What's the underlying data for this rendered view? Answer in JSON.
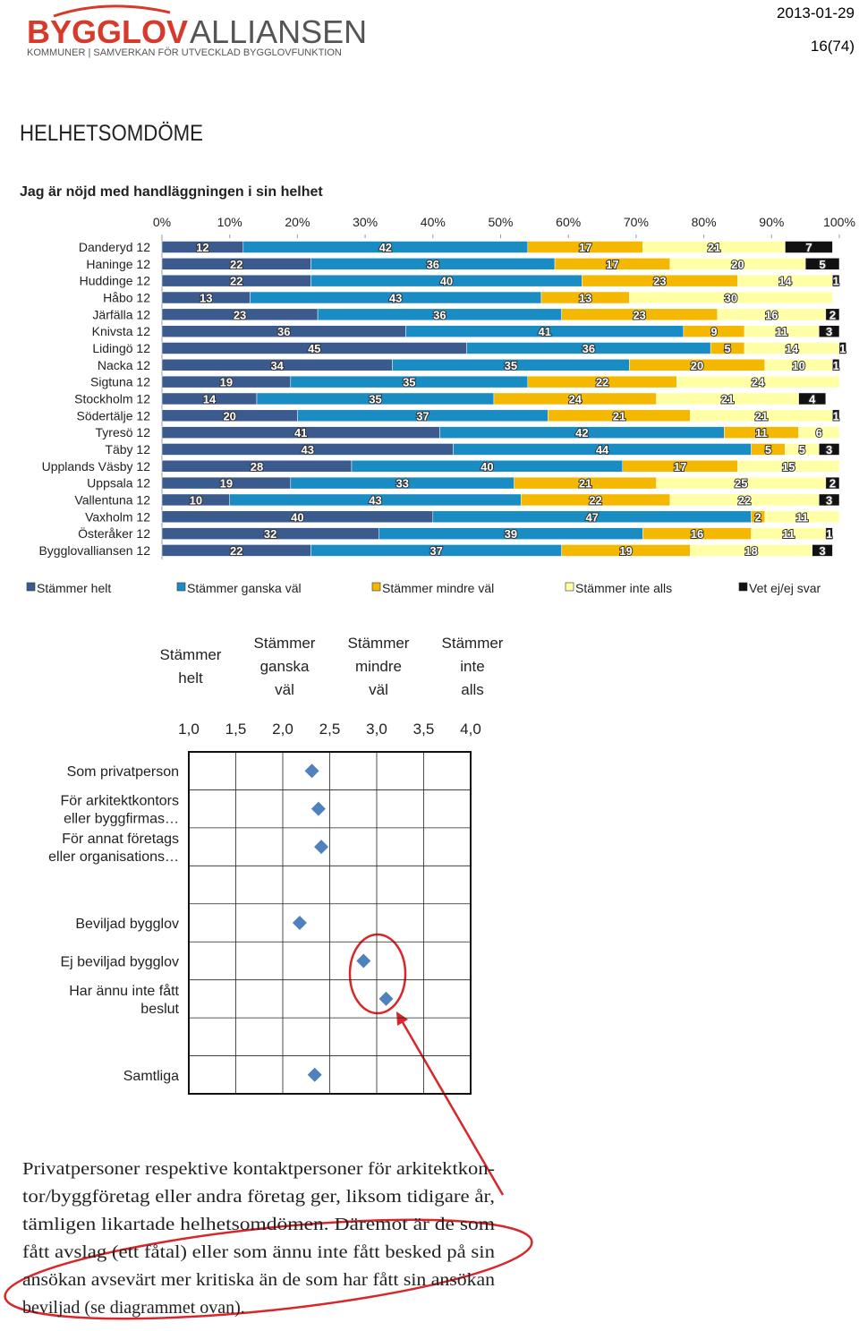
{
  "header": {
    "logo_bold": "BYGGLOV",
    "logo_light": "ALLIANSEN",
    "tagline": "KOMMUNER | SAMVERKAN FÖR UTVECKLAD BYGGLOVFUNKTION",
    "date": "2013-01-29",
    "page": "16(74)"
  },
  "section_title": "HELHETSOMDÖME",
  "chart_data": [
    {
      "type": "bar",
      "orientation": "horizontal",
      "stacked": true,
      "title": "Jag är nöjd med handläggningen i sin helhet",
      "categories": [
        "Danderyd 12",
        "Haninge 12",
        "Huddinge 12",
        "Håbo 12",
        "Järfälla 12",
        "Knivsta 12",
        "Lidingö 12",
        "Nacka 12",
        "Sigtuna 12",
        "Stockholm 12",
        "Södertälje 12",
        "Tyresö 12",
        "Täby 12",
        "Upplands Väsby 12",
        "Uppsala 12",
        "Vallentuna 12",
        "Vaxholm 12",
        "Österåker 12",
        "Bygglovalliansen 12"
      ],
      "series": [
        {
          "name": "Stämmer helt",
          "color": "#3b5b8e",
          "values": [
            12,
            22,
            22,
            13,
            23,
            36,
            45,
            34,
            19,
            14,
            20,
            41,
            43,
            28,
            19,
            10,
            40,
            32,
            22
          ]
        },
        {
          "name": "Stämmer ganska väl",
          "color": "#1a8cc4",
          "values": [
            42,
            36,
            40,
            43,
            36,
            41,
            36,
            35,
            35,
            35,
            37,
            42,
            44,
            40,
            33,
            43,
            47,
            39,
            37
          ]
        },
        {
          "name": "Stämmer mindre väl",
          "color": "#f5b800",
          "values": [
            17,
            17,
            23,
            13,
            23,
            9,
            5,
            20,
            22,
            24,
            21,
            11,
            5,
            17,
            21,
            22,
            2,
            16,
            19
          ]
        },
        {
          "name": "Stämmer inte alls",
          "color": "#ffffa6",
          "values": [
            21,
            20,
            14,
            30,
            16,
            11,
            14,
            10,
            24,
            21,
            21,
            6,
            5,
            15,
            25,
            22,
            11,
            11,
            18
          ]
        },
        {
          "name": "Vet ej/ej svar",
          "color": "#111111",
          "values": [
            7,
            5,
            1,
            0,
            2,
            3,
            1,
            1,
            0,
            4,
            1,
            0,
            3,
            0,
            2,
            3,
            0,
            1,
            3
          ]
        }
      ],
      "xlim": [
        0,
        100
      ],
      "xticks": [
        {
          "value": 0,
          "label": "0%"
        },
        {
          "value": 10,
          "label": "10%"
        },
        {
          "value": 20,
          "label": "20%"
        },
        {
          "value": 30,
          "label": "30%"
        },
        {
          "value": 40,
          "label": "40%"
        },
        {
          "value": 50,
          "label": "50%"
        },
        {
          "value": 60,
          "label": "60%"
        },
        {
          "value": 70,
          "label": "70%"
        },
        {
          "value": 80,
          "label": "80%"
        },
        {
          "value": 90,
          "label": "90%"
        },
        {
          "value": 100,
          "label": "100%"
        }
      ],
      "legend": "bottom",
      "data_labels": true
    },
    {
      "type": "dot",
      "scale_labels": [
        {
          "value": 1,
          "label": "Stämmer\nhelt"
        },
        {
          "value": 2,
          "label": "Stämmer\nganska\nväl"
        },
        {
          "value": 3,
          "label": "Stämmer\nmindre\nväl"
        },
        {
          "value": 4,
          "label": "Stämmer\ninte\nalls"
        }
      ],
      "categories": [
        "Som privatperson",
        "För arkitektkontors\neller byggfirmas…",
        "För annat företags\neller organisations…",
        null,
        "Beviljad bygglov",
        "Ej beviljad bygglov",
        "Har ännu inte fått\nbeslut",
        null,
        "Samtliga"
      ],
      "values": [
        2.31,
        2.38,
        2.41,
        null,
        2.18,
        2.86,
        3.1,
        null,
        2.34
      ],
      "color": "#4f81bd",
      "xlim": [
        1,
        4
      ],
      "xticks": [
        {
          "value": 1,
          "label": "1,0"
        },
        {
          "value": 1.5,
          "label": "1,5"
        },
        {
          "value": 2,
          "label": "2,0"
        },
        {
          "value": 2.5,
          "label": "2,5"
        },
        {
          "value": 3,
          "label": "3,0"
        },
        {
          "value": 3.5,
          "label": "3,5"
        },
        {
          "value": 4,
          "label": "4,0"
        }
      ],
      "grid": true
    }
  ],
  "paragraph": [
    "Privatpersoner respektive kontaktpersoner för arkitektkon-",
    "tor/byggföretag eller andra företag ger, liksom tidigare år,",
    "tämligen likartade helhetsomdömen. Däremot är de som",
    "fått avslag (ett fåtal) eller som ännu inte fått besked på sin",
    "ansökan avsevärt mer kritiska än de som har fått sin ansökan",
    "beviljad (se diagrammet ovan)."
  ]
}
